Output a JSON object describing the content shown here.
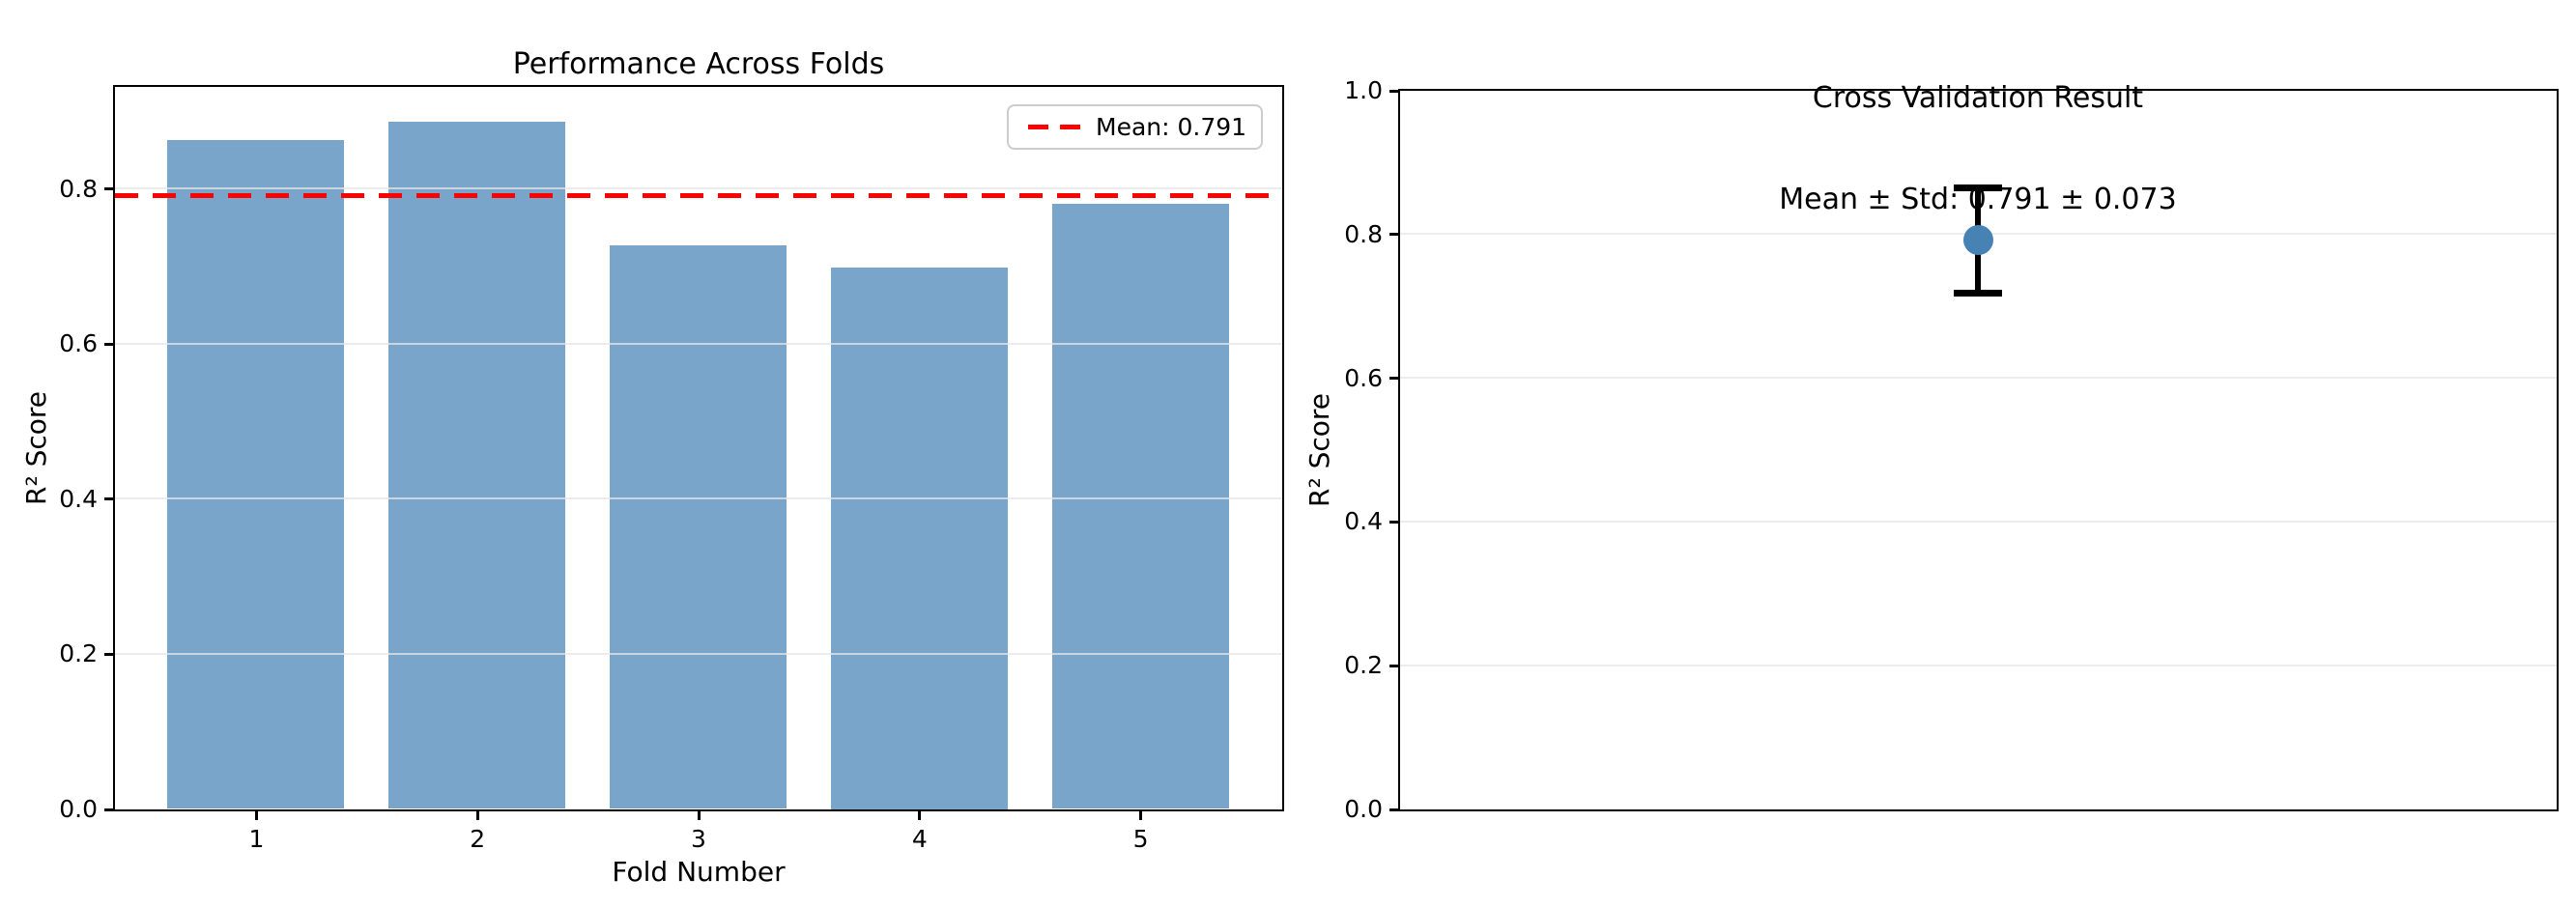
{
  "figure": {
    "background": "#ffffff"
  },
  "colors": {
    "bar_fill": "#7aa5cb",
    "mean_line": "#ff0000",
    "marker_fill": "#4682b4",
    "errorbar_color": "#000000",
    "grid": "#e6e6e6",
    "spine": "#000000",
    "legend_border": "#cccccc",
    "text": "#000000"
  },
  "chart_data": [
    {
      "type": "bar",
      "title": "Performance Across Folds",
      "xlabel": "Fold Number",
      "ylabel": "R² Score",
      "categories": [
        "1",
        "2",
        "3",
        "4",
        "5"
      ],
      "values": [
        0.863,
        0.886,
        0.727,
        0.699,
        0.78
      ],
      "bar_width": 0.8,
      "xlim": [
        0.36,
        5.64
      ],
      "ylim": [
        0,
        0.932
      ],
      "yticks": [
        0.0,
        0.2,
        0.4,
        0.6,
        0.8
      ],
      "ytick_labels": [
        "0.0",
        "0.2",
        "0.4",
        "0.6",
        "0.8"
      ],
      "grid": true,
      "mean_line": {
        "value": 0.791,
        "style": "dashed",
        "color": "#ff0000",
        "label": "Mean: 0.791"
      },
      "legend": {
        "position": "upper right",
        "entries": [
          "Mean: 0.791"
        ]
      }
    },
    {
      "type": "scatter",
      "title": "Cross Validation Result",
      "subtitle": "Mean ± Std: 0.791 ± 0.073",
      "ylabel": "R² Score",
      "points": [
        {
          "x": 0,
          "y": 0.791,
          "yerr": 0.073
        }
      ],
      "mean": 0.791,
      "std": 0.073,
      "xlim": [
        -1,
        1
      ],
      "ylim": [
        0,
        1.0
      ],
      "yticks": [
        0.0,
        0.2,
        0.4,
        0.6,
        0.8,
        1.0
      ],
      "ytick_labels": [
        "0.0",
        "0.2",
        "0.4",
        "0.6",
        "0.8",
        "1.0"
      ],
      "xticks": [],
      "grid": true,
      "legend": null
    }
  ]
}
